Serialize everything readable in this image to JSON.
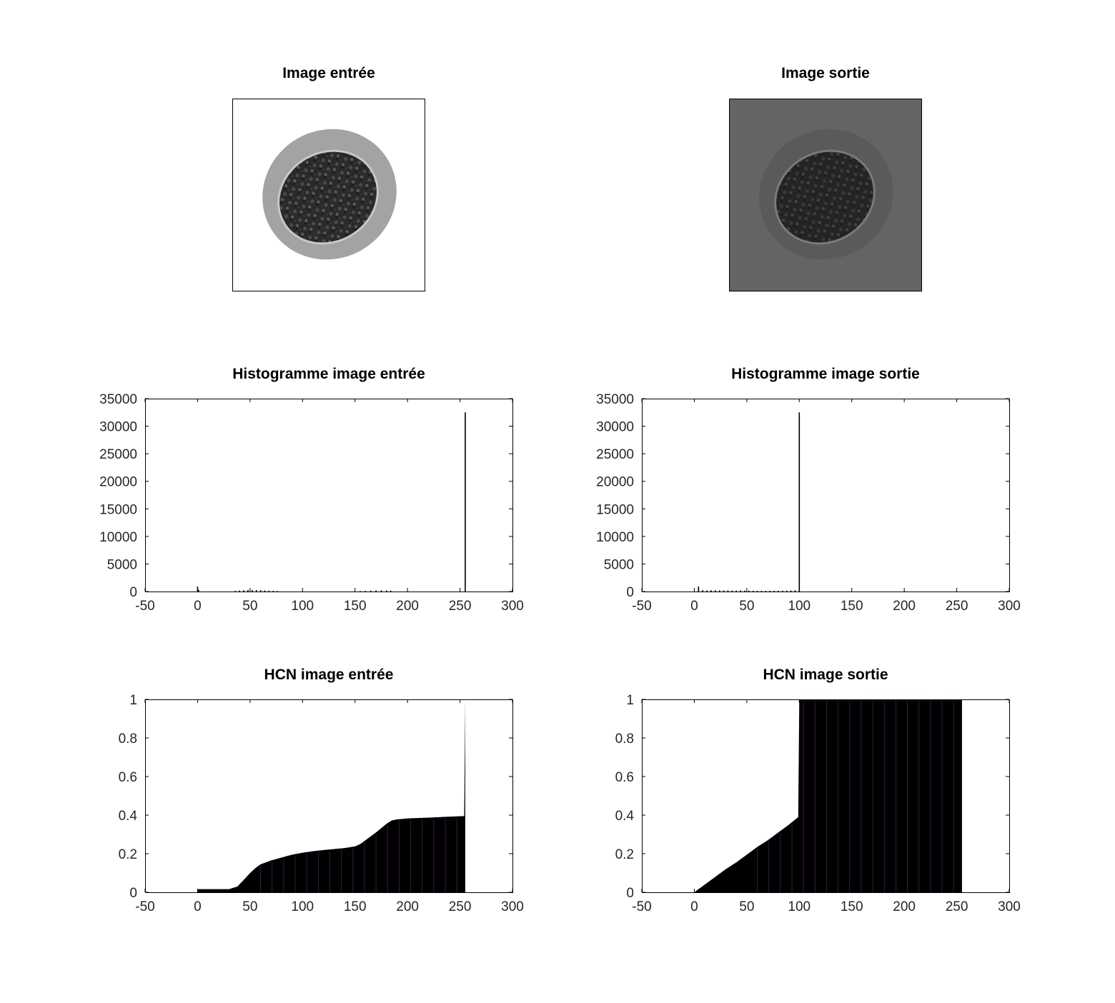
{
  "images": {
    "input": {
      "title": "Image entrée",
      "background": "#ffffff"
    },
    "output": {
      "title": "Image sortie",
      "background": "#646464"
    }
  },
  "chart_data": [
    {
      "id": "hist-in",
      "type": "bar",
      "title": "Histogramme image entrée",
      "xlabel": "",
      "ylabel": "",
      "xlim": [
        -50,
        300
      ],
      "ylim": [
        0,
        35000
      ],
      "xticks": [
        -50,
        0,
        50,
        100,
        150,
        200,
        250,
        300
      ],
      "yticks": [
        0,
        5000,
        10000,
        15000,
        20000,
        25000,
        30000,
        35000
      ],
      "grid": false,
      "points": [
        [
          0,
          900
        ],
        [
          1,
          300
        ],
        [
          36,
          120
        ],
        [
          40,
          180
        ],
        [
          44,
          230
        ],
        [
          48,
          260
        ],
        [
          52,
          280
        ],
        [
          56,
          260
        ],
        [
          60,
          230
        ],
        [
          64,
          200
        ],
        [
          68,
          160
        ],
        [
          72,
          120
        ],
        [
          76,
          80
        ],
        [
          155,
          80
        ],
        [
          160,
          120
        ],
        [
          165,
          160
        ],
        [
          170,
          190
        ],
        [
          175,
          220
        ],
        [
          180,
          200
        ],
        [
          184,
          150
        ],
        [
          255,
          32500
        ]
      ]
    },
    {
      "id": "hist-out",
      "type": "bar",
      "title": "Histogramme image sortie",
      "xlabel": "",
      "ylabel": "",
      "xlim": [
        -50,
        300
      ],
      "ylim": [
        0,
        35000
      ],
      "xticks": [
        -50,
        0,
        50,
        100,
        150,
        200,
        250,
        300
      ],
      "yticks": [
        0,
        5000,
        10000,
        15000,
        20000,
        25000,
        30000,
        35000
      ],
      "grid": false,
      "points": [
        [
          4,
          900
        ],
        [
          8,
          250
        ],
        [
          12,
          200
        ],
        [
          16,
          230
        ],
        [
          20,
          220
        ],
        [
          24,
          210
        ],
        [
          28,
          200
        ],
        [
          32,
          190
        ],
        [
          36,
          180
        ],
        [
          40,
          170
        ],
        [
          44,
          200
        ],
        [
          48,
          160
        ],
        [
          52,
          150
        ],
        [
          56,
          140
        ],
        [
          60,
          130
        ],
        [
          64,
          130
        ],
        [
          68,
          120
        ],
        [
          72,
          120
        ],
        [
          76,
          130
        ],
        [
          80,
          140
        ],
        [
          84,
          150
        ],
        [
          88,
          170
        ],
        [
          92,
          190
        ],
        [
          96,
          220
        ],
        [
          100,
          32500
        ]
      ]
    },
    {
      "id": "hcn-in",
      "type": "area",
      "title": "HCN image entrée",
      "xlabel": "",
      "ylabel": "",
      "xlim": [
        -50,
        300
      ],
      "ylim": [
        0,
        1
      ],
      "xticks": [
        -50,
        0,
        50,
        100,
        150,
        200,
        250,
        300
      ],
      "yticks": [
        0,
        0.2,
        0.4,
        0.6,
        0.8,
        1
      ],
      "grid": false,
      "points": [
        [
          0,
          0.016
        ],
        [
          30,
          0.016
        ],
        [
          38,
          0.03
        ],
        [
          45,
          0.07
        ],
        [
          50,
          0.1
        ],
        [
          55,
          0.125
        ],
        [
          60,
          0.145
        ],
        [
          70,
          0.165
        ],
        [
          80,
          0.18
        ],
        [
          90,
          0.195
        ],
        [
          100,
          0.205
        ],
        [
          110,
          0.213
        ],
        [
          120,
          0.219
        ],
        [
          130,
          0.224
        ],
        [
          140,
          0.229
        ],
        [
          150,
          0.238
        ],
        [
          155,
          0.25
        ],
        [
          160,
          0.27
        ],
        [
          170,
          0.31
        ],
        [
          180,
          0.355
        ],
        [
          185,
          0.372
        ],
        [
          190,
          0.378
        ],
        [
          200,
          0.383
        ],
        [
          220,
          0.387
        ],
        [
          240,
          0.392
        ],
        [
          254,
          0.395
        ],
        [
          255,
          1.0
        ]
      ]
    },
    {
      "id": "hcn-out",
      "type": "area",
      "title": "HCN image sortie",
      "xlabel": "",
      "ylabel": "",
      "xlim": [
        -50,
        300
      ],
      "ylim": [
        0,
        1
      ],
      "xticks": [
        -50,
        0,
        50,
        100,
        150,
        200,
        250,
        300
      ],
      "yticks": [
        0,
        0.2,
        0.4,
        0.6,
        0.8,
        1
      ],
      "grid": false,
      "points": [
        [
          0,
          0.0
        ],
        [
          4,
          0.016
        ],
        [
          10,
          0.04
        ],
        [
          20,
          0.08
        ],
        [
          30,
          0.12
        ],
        [
          40,
          0.155
        ],
        [
          50,
          0.195
        ],
        [
          60,
          0.235
        ],
        [
          70,
          0.27
        ],
        [
          80,
          0.31
        ],
        [
          90,
          0.35
        ],
        [
          99,
          0.39
        ],
        [
          100,
          1.0
        ],
        [
          255,
          1.0
        ]
      ]
    }
  ]
}
